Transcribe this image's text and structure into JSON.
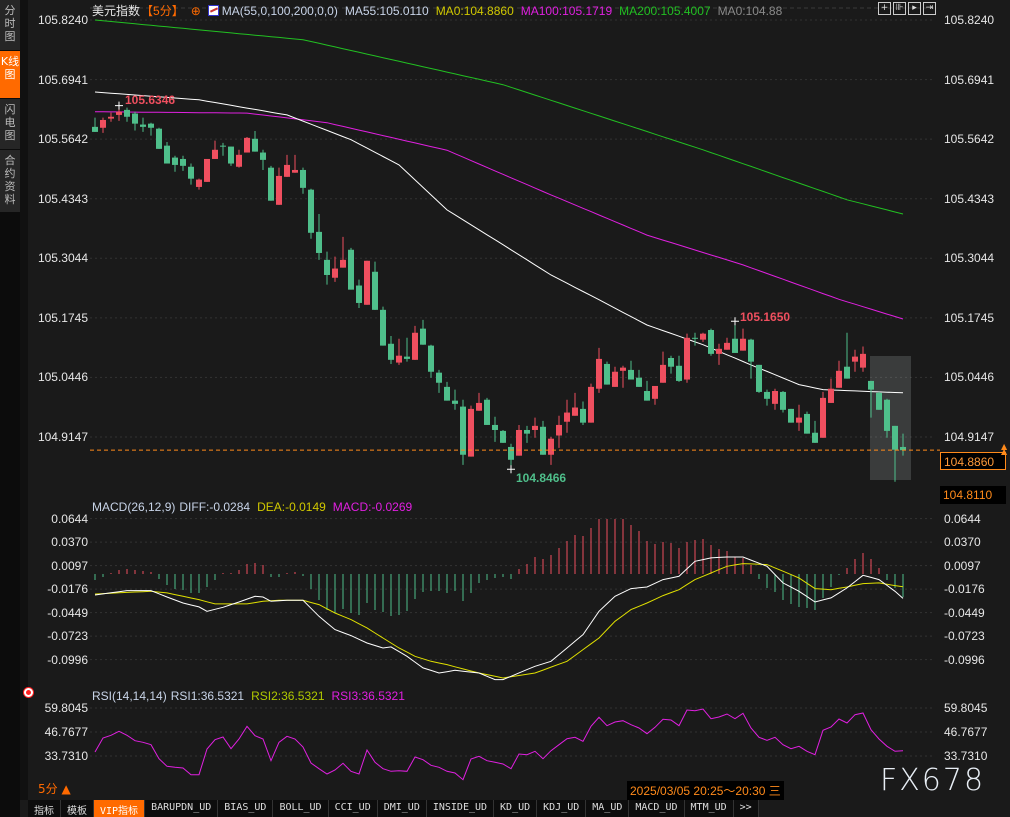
{
  "sidebar": {
    "tabs": [
      {
        "label": "分时图",
        "active": false
      },
      {
        "label": "K线图",
        "active": true
      },
      {
        "label": "闪电图",
        "active": false
      },
      {
        "label": "合约资料",
        "active": false
      }
    ]
  },
  "header": {
    "symbol": "美元指数",
    "period": "【5分】",
    "ma_params": "MA(55,0,100,200,0,0)",
    "ma55": "MA55:105.0110",
    "ma0": "MA0:104.8860",
    "ma100": "MA100:105.1719",
    "ma200": "MA200:105.4007",
    "ma0b": "MA0:104.88"
  },
  "toolbar_icons": [
    "crosshair-icon",
    "fit-icon",
    "play-icon",
    "scroll-end-icon"
  ],
  "price_axis": {
    "labels": [
      "105.8240",
      "105.6941",
      "105.5642",
      "105.4343",
      "105.3044",
      "105.1745",
      "105.0446",
      "104.9147"
    ],
    "values": [
      105.824,
      105.6941,
      105.5642,
      105.4343,
      105.3044,
      105.1745,
      105.0446,
      104.9147
    ],
    "last_price": "104.8860",
    "low_marker": "104.8110"
  },
  "annotations": {
    "high": "105.6346",
    "low": "104.8466",
    "swing_high": "105.1650"
  },
  "macd": {
    "title": "MACD(26,12,9)",
    "diff": "DIFF:-0.0284",
    "dea": "DEA:-0.0149",
    "macd": "MACD:-0.0269",
    "labels": [
      "0.0644",
      "0.0370",
      "0.0097",
      "-0.0176",
      "-0.0449",
      "-0.0723",
      "-0.0996"
    ],
    "values": [
      0.0644,
      0.037,
      0.0097,
      -0.0176,
      -0.0449,
      -0.0723,
      -0.0996
    ]
  },
  "rsi": {
    "title": "RSI(14,14,14)",
    "rsi1": "RSI1:36.5321",
    "rsi2": "RSI2:36.5321",
    "rsi3": "RSI3:36.5321",
    "labels": [
      "59.8045",
      "46.7677",
      "33.7310"
    ],
    "values": [
      59.8045,
      46.7677,
      33.731
    ]
  },
  "footer": {
    "period": "5分 ▲",
    "datetime": "2025/03/05 20:25～20:30 三",
    "watermark": "FX678"
  },
  "bottom_tabs": [
    "指标",
    "模板",
    "VIP指标",
    "BARUPDN_UD",
    "BIAS_UD",
    "BOLL_UD",
    "CCI_UD",
    "DMI_UD",
    "INSIDE_UD",
    "KD_UD",
    "KDJ_UD",
    "MA_UD",
    "MACD_UD",
    "MTM_UD",
    ">>"
  ],
  "colors": {
    "up": "#ef4f5f",
    "down": "#4fbf8b",
    "accent": "#ff6a00",
    "ma55": "#ffffff",
    "ma100": "#e020e0",
    "ma200": "#22c022",
    "dea": "#e0e000",
    "rsi": "#e020e0"
  },
  "chart_data": {
    "type": "candlestick",
    "fields": [
      "open",
      "close",
      "high",
      "low"
    ],
    "candles": [
      [
        105.591,
        105.58,
        105.611,
        105.58
      ],
      [
        105.589,
        105.606,
        105.611,
        105.578
      ],
      [
        105.609,
        105.613,
        105.622,
        105.602
      ],
      [
        105.617,
        105.624,
        105.635,
        105.604
      ],
      [
        105.628,
        105.613,
        105.633,
        105.602
      ],
      [
        105.62,
        105.598,
        105.624,
        105.583
      ],
      [
        105.596,
        105.591,
        105.611,
        105.58
      ],
      [
        105.598,
        105.589,
        105.6,
        105.572
      ],
      [
        105.587,
        105.543,
        105.589,
        105.543
      ],
      [
        105.55,
        105.511,
        105.558,
        105.511
      ],
      [
        105.524,
        105.508,
        105.528,
        105.493
      ],
      [
        105.521,
        105.506,
        105.528,
        105.495
      ],
      [
        105.504,
        105.478,
        105.511,
        105.465
      ],
      [
        105.46,
        105.476,
        105.478,
        105.454
      ],
      [
        105.471,
        105.521,
        105.521,
        105.471
      ],
      [
        105.521,
        105.541,
        105.561,
        105.521
      ],
      [
        105.55,
        105.548,
        105.556,
        105.528
      ],
      [
        105.548,
        105.511,
        105.548,
        105.506
      ],
      [
        105.504,
        105.53,
        105.541,
        105.502
      ],
      [
        105.535,
        105.567,
        105.569,
        105.535
      ],
      [
        105.565,
        105.537,
        105.582,
        105.537
      ],
      [
        105.535,
        105.519,
        105.541,
        105.497
      ],
      [
        105.502,
        105.43,
        105.506,
        105.43
      ],
      [
        105.421,
        105.484,
        105.502,
        105.421
      ],
      [
        105.482,
        105.508,
        105.53,
        105.482
      ],
      [
        105.491,
        105.497,
        105.53,
        105.491
      ],
      [
        105.497,
        105.458,
        105.502,
        105.445
      ],
      [
        105.454,
        105.36,
        105.456,
        105.347
      ],
      [
        105.362,
        105.316,
        105.401,
        105.301
      ],
      [
        105.301,
        105.268,
        105.319,
        105.247
      ],
      [
        105.262,
        105.282,
        105.308,
        105.253
      ],
      [
        105.284,
        105.301,
        105.351,
        105.284
      ],
      [
        105.323,
        105.236,
        105.327,
        105.236
      ],
      [
        105.245,
        105.207,
        105.258,
        105.196
      ],
      [
        105.203,
        105.299,
        105.299,
        105.203
      ],
      [
        105.275,
        105.192,
        105.297,
        105.192
      ],
      [
        105.192,
        105.114,
        105.199,
        105.114
      ],
      [
        105.118,
        105.083,
        105.135,
        105.074
      ],
      [
        105.077,
        105.092,
        105.129,
        105.072
      ],
      [
        105.09,
        105.085,
        105.131,
        105.079
      ],
      [
        105.083,
        105.142,
        105.157,
        105.083
      ],
      [
        105.151,
        105.116,
        105.17,
        105.116
      ],
      [
        105.114,
        105.057,
        105.116,
        105.044
      ],
      [
        105.055,
        105.033,
        105.061,
        105.011
      ],
      [
        105.024,
        104.994,
        105.035,
        104.994
      ],
      [
        104.994,
        104.987,
        105.018,
        104.974
      ],
      [
        104.981,
        104.876,
        104.996,
        104.854
      ],
      [
        104.872,
        104.976,
        104.983,
        104.872
      ],
      [
        104.972,
        104.989,
        105.011,
        104.972
      ],
      [
        104.996,
        104.941,
        105.0,
        104.941
      ],
      [
        104.941,
        104.93,
        104.959,
        104.904
      ],
      [
        104.928,
        104.902,
        104.93,
        104.902
      ],
      [
        104.893,
        104.865,
        104.9,
        104.8466
      ],
      [
        104.874,
        104.93,
        104.941,
        104.874
      ],
      [
        104.93,
        104.922,
        104.939,
        104.902
      ],
      [
        104.93,
        104.939,
        104.957,
        104.913
      ],
      [
        104.937,
        104.876,
        104.95,
        104.876
      ],
      [
        104.876,
        104.911,
        104.915,
        104.854
      ],
      [
        104.918,
        104.941,
        104.961,
        104.891
      ],
      [
        104.948,
        104.968,
        104.996,
        104.924
      ],
      [
        104.961,
        104.979,
        105.011,
        104.961
      ],
      [
        104.976,
        104.946,
        104.992,
        104.941
      ],
      [
        104.946,
        105.024,
        105.031,
        104.946
      ],
      [
        105.02,
        105.085,
        105.109,
        105.011
      ],
      [
        105.074,
        105.029,
        105.079,
        105.029
      ],
      [
        105.024,
        105.057,
        105.068,
        105.024
      ],
      [
        105.059,
        105.066,
        105.07,
        105.022
      ],
      [
        105.061,
        105.04,
        105.081,
        105.04
      ],
      [
        105.044,
        105.024,
        105.061,
        105.024
      ],
      [
        105.015,
        104.994,
        105.037,
        104.994
      ],
      [
        104.998,
        105.026,
        105.026,
        104.985
      ],
      [
        105.033,
        105.072,
        105.101,
        105.033
      ],
      [
        105.087,
        105.068,
        105.092,
        105.053
      ],
      [
        105.07,
        105.037,
        105.092,
        105.035
      ],
      [
        105.04,
        105.131,
        105.14,
        105.033
      ],
      [
        105.131,
        105.129,
        105.142,
        105.114
      ],
      [
        105.127,
        105.14,
        105.142,
        105.122
      ],
      [
        105.148,
        105.096,
        105.151,
        105.092
      ],
      [
        105.096,
        105.107,
        105.118,
        105.072
      ],
      [
        105.105,
        105.12,
        105.131,
        105.105
      ],
      [
        105.129,
        105.098,
        105.165,
        105.098
      ],
      [
        105.103,
        105.129,
        105.151,
        105.103
      ],
      [
        105.127,
        105.079,
        105.129,
        105.042
      ],
      [
        105.072,
        105.013,
        105.072,
        105.011
      ],
      [
        105.013,
        104.998,
        105.018,
        104.983
      ],
      [
        104.987,
        105.015,
        105.02,
        104.974
      ],
      [
        105.013,
        104.974,
        105.015,
        104.968
      ],
      [
        104.976,
        104.946,
        104.976,
        104.946
      ],
      [
        104.946,
        104.957,
        104.985,
        104.928
      ],
      [
        104.965,
        104.922,
        104.97,
        104.922
      ],
      [
        104.924,
        104.902,
        104.95,
        104.902
      ],
      [
        104.913,
        105.0,
        105.013,
        104.913
      ],
      [
        104.989,
        105.02,
        105.042,
        104.989
      ],
      [
        105.022,
        105.059,
        105.081,
        105.022
      ],
      [
        105.068,
        105.042,
        105.142,
        105.042
      ],
      [
        105.079,
        105.09,
        105.105,
        105.057
      ],
      [
        105.066,
        105.096,
        105.112,
        105.057
      ],
      [
        105.037,
        105.018,
        105.037,
        104.957
      ],
      [
        105.011,
        104.974,
        105.013,
        104.974
      ],
      [
        104.996,
        104.928,
        104.998,
        104.913
      ],
      [
        104.939,
        104.887,
        104.939,
        104.817
      ],
      [
        104.893,
        104.886,
        104.922,
        104.874
      ]
    ],
    "ma55": [
      [
        1,
        105.667
      ],
      [
        14,
        105.65
      ],
      [
        25,
        105.617
      ],
      [
        33,
        105.563
      ],
      [
        39,
        105.508
      ],
      [
        45,
        105.41
      ],
      [
        52,
        105.334
      ],
      [
        58,
        105.268
      ],
      [
        64,
        105.214
      ],
      [
        70,
        105.159
      ],
      [
        77,
        105.116
      ],
      [
        83,
        105.072
      ],
      [
        89,
        105.029
      ],
      [
        92,
        105.018
      ],
      [
        102,
        105.011
      ]
    ],
    "ma100": [
      [
        1,
        105.624
      ],
      [
        20,
        105.621
      ],
      [
        30,
        105.6
      ],
      [
        45,
        105.54
      ],
      [
        57,
        105.45
      ],
      [
        70,
        105.355
      ],
      [
        82,
        105.29
      ],
      [
        94,
        105.215
      ],
      [
        102,
        105.172
      ]
    ],
    "ma200": [
      [
        1,
        105.824
      ],
      [
        27,
        105.781
      ],
      [
        52,
        105.683
      ],
      [
        77,
        105.541
      ],
      [
        95,
        105.432
      ],
      [
        102,
        105.401
      ]
    ],
    "macd_hist": [
      -0.007,
      -0.0035,
      0.0012,
      0.0047,
      0.0058,
      0.0047,
      0.0035,
      0.0023,
      -0.0058,
      -0.0128,
      -0.0174,
      -0.0186,
      -0.0221,
      -0.0221,
      -0.0151,
      -0.007,
      0.0012,
      0.0012,
      0.0047,
      0.0116,
      0.0128,
      0.0105,
      -0.0035,
      -0.0035,
      0.0012,
      0.0023,
      -0.0023,
      -0.0174,
      -0.0302,
      -0.0419,
      -0.0454,
      -0.0407,
      -0.0454,
      -0.0477,
      -0.0337,
      -0.0419,
      -0.0442,
      -0.0488,
      -0.0477,
      -0.043,
      -0.0291,
      -0.0209,
      -0.0198,
      -0.0198,
      -0.0221,
      -0.0198,
      -0.0314,
      -0.0221,
      -0.0105,
      -0.007,
      -0.0047,
      -0.0035,
      -0.0058,
      0.0058,
      0.0116,
      0.0198,
      0.0174,
      0.0221,
      0.0302,
      0.0384,
      0.0454,
      0.0442,
      0.0535,
      0.064,
      0.064,
      0.064,
      0.064,
      0.057,
      0.05,
      0.0384,
      0.0349,
      0.0372,
      0.0361,
      0.0302,
      0.0372,
      0.0395,
      0.0407,
      0.0337,
      0.0291,
      0.0267,
      0.0198,
      0.0186,
      0.0105,
      -0.0058,
      -0.0163,
      -0.0209,
      -0.0302,
      -0.0349,
      -0.0384,
      -0.0395,
      -0.0419,
      -0.0279,
      -0.0151,
      -0.0012,
      0.007,
      0.0174,
      0.0244,
      0.0174,
      0.007,
      -0.007,
      -0.0163,
      -0.0269
    ],
    "diff": [
      [
        1,
        -0.0244
      ],
      [
        5,
        -0.0193
      ],
      [
        8,
        -0.0193
      ],
      [
        10,
        -0.0267
      ],
      [
        12,
        -0.0337
      ],
      [
        14,
        -0.0383
      ],
      [
        15,
        -0.0434
      ],
      [
        17,
        -0.0387
      ],
      [
        19,
        -0.0325
      ],
      [
        21,
        -0.0259
      ],
      [
        22,
        -0.0267
      ],
      [
        23,
        -0.0317
      ],
      [
        25,
        -0.0306
      ],
      [
        27,
        -0.0306
      ],
      [
        29,
        -0.0492
      ],
      [
        31,
        -0.0647
      ],
      [
        33,
        -0.0716
      ],
      [
        35,
        -0.0802
      ],
      [
        37,
        -0.086
      ],
      [
        38,
        -0.0848
      ],
      [
        40,
        -0.0957
      ],
      [
        42,
        -0.1092
      ],
      [
        44,
        -0.1151
      ],
      [
        46,
        -0.112
      ],
      [
        49,
        -0.1151
      ],
      [
        51,
        -0.1228
      ],
      [
        52,
        -0.1228
      ],
      [
        56,
        -0.1073
      ],
      [
        58,
        -0.1015
      ],
      [
        60,
        -0.086
      ],
      [
        62,
        -0.0705
      ],
      [
        64,
        -0.0434
      ],
      [
        66,
        -0.0259
      ],
      [
        68,
        -0.017
      ],
      [
        70,
        -0.0151
      ],
      [
        72,
        -0.0065
      ],
      [
        74,
        -0.0027
      ],
      [
        76,
        0.0148
      ],
      [
        78,
        0.0187
      ],
      [
        80,
        0.0198
      ],
      [
        82,
        0.0198
      ],
      [
        85,
        0.009
      ],
      [
        87,
        -0.0104
      ],
      [
        89,
        -0.0201
      ],
      [
        91,
        -0.0325
      ],
      [
        93,
        -0.0278
      ],
      [
        95,
        -0.0162
      ],
      [
        97,
        -0.0015
      ],
      [
        99,
        -0.0065
      ],
      [
        101,
        -0.0201
      ],
      [
        102,
        -0.0284
      ]
    ],
    "dea": [
      [
        1,
        -0.0232
      ],
      [
        8,
        -0.0201
      ],
      [
        10,
        -0.022
      ],
      [
        14,
        -0.0298
      ],
      [
        16,
        -0.0348
      ],
      [
        20,
        -0.0348
      ],
      [
        22,
        -0.0317
      ],
      [
        24,
        -0.0306
      ],
      [
        27,
        -0.0306
      ],
      [
        29,
        -0.0356
      ],
      [
        31,
        -0.0453
      ],
      [
        33,
        -0.053
      ],
      [
        35,
        -0.0627
      ],
      [
        37,
        -0.0744
      ],
      [
        39,
        -0.086
      ],
      [
        41,
        -0.0957
      ],
      [
        43,
        -0.1015
      ],
      [
        45,
        -0.1054
      ],
      [
        47,
        -0.1104
      ],
      [
        49,
        -0.1151
      ],
      [
        51,
        -0.1189
      ],
      [
        52,
        -0.1209
      ],
      [
        56,
        -0.1151
      ],
      [
        60,
        -0.1015
      ],
      [
        64,
        -0.0744
      ],
      [
        66,
        -0.055
      ],
      [
        68,
        -0.0414
      ],
      [
        70,
        -0.0337
      ],
      [
        72,
        -0.0251
      ],
      [
        74,
        -0.0182
      ],
      [
        76,
        -0.0065
      ],
      [
        78,
        0.0012
      ],
      [
        80,
        0.009
      ],
      [
        82,
        0.0121
      ],
      [
        85,
        0.0109
      ],
      [
        87,
        0.0032
      ],
      [
        89,
        -0.0046
      ],
      [
        91,
        -0.017
      ],
      [
        93,
        -0.0182
      ],
      [
        95,
        -0.0151
      ],
      [
        97,
        -0.0112
      ],
      [
        99,
        -0.0104
      ],
      [
        101,
        -0.0135
      ],
      [
        102,
        -0.0149
      ]
    ],
    "rsi": [
      35.9,
      43.51,
      44.96,
      47.13,
      44.96,
      42.06,
      41.15,
      39.89,
      32.28,
      28.12,
      27.57,
      27.21,
      23.59,
      23.59,
      37.53,
      42.6,
      44.05,
      37.71,
      42.96,
      49.85,
      44.78,
      42.96,
      31.2,
      41.15,
      44.41,
      42.96,
      38.62,
      29.93,
      26.85,
      23.95,
      26.12,
      29.75,
      25.4,
      23.95,
      36.99,
      30.29,
      26.85,
      25.4,
      25.76,
      25.4,
      33.19,
      31.74,
      28.66,
      27.57,
      25.4,
      24.5,
      20.87,
      32.1,
      33.55,
      31.2,
      30.29,
      29.38,
      26.85,
      34.82,
      34.45,
      36.26,
      32.28,
      36.63,
      39.89,
      43.15,
      43.87,
      41.7,
      49.85,
      54.73,
      50.21,
      52.2,
      52.92,
      50.75,
      48.94,
      45.86,
      49.3,
      53.65,
      53.29,
      50.21,
      58.72,
      58.36,
      59.26,
      54.01,
      54.92,
      56.55,
      54.01,
      56.91,
      48.94,
      43.87,
      42.24,
      43.87,
      39.89,
      37.71,
      38.98,
      36.26,
      34.45,
      47.67,
      49.49,
      53.83,
      51.66,
      56.19,
      57.09,
      48.04,
      42.96,
      38.98,
      36.26,
      36.53
    ]
  }
}
